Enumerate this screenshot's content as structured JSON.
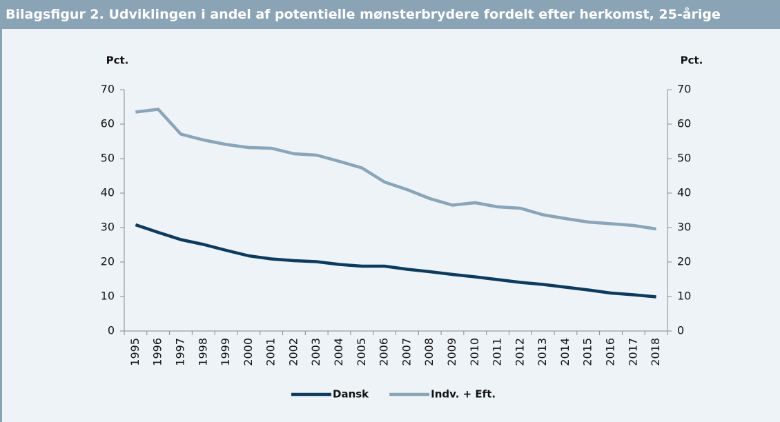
{
  "chart_data": {
    "type": "line",
    "title": "Bilagsfigur 2. Udviklingen i andel af potentielle mønsterbrydere fordelt efter herkomst, 25-årige",
    "ylabel": "Pct.",
    "y2label": "Pct.",
    "categories": [
      "1995",
      "1996",
      "1997",
      "1998",
      "1999",
      "2000",
      "2001",
      "2002",
      "2003",
      "2004",
      "2005",
      "2006",
      "2007",
      "2008",
      "2009",
      "2010",
      "2011",
      "2012",
      "2013",
      "2014",
      "2015",
      "2016",
      "2017",
      "2018"
    ],
    "series": [
      {
        "name": "Dansk",
        "color": "#0d3b5e",
        "values": [
          30.8,
          28.6,
          26.5,
          25.1,
          23.4,
          21.8,
          20.9,
          20.4,
          20.1,
          19.3,
          18.8,
          18.8,
          17.9,
          17.2,
          16.4,
          15.7,
          14.9,
          14.1,
          13.5,
          12.7,
          11.9,
          11.0,
          10.5,
          9.9
        ]
      },
      {
        "name": "Indv. + Eft.",
        "color": "#8aa5b8",
        "values": [
          63.5,
          64.3,
          57.1,
          55.4,
          54.1,
          53.2,
          53.0,
          51.4,
          51.0,
          49.2,
          47.3,
          43.2,
          41.0,
          38.4,
          36.5,
          37.2,
          36.0,
          35.6,
          33.7,
          32.6,
          31.6,
          31.1,
          30.6,
          29.6
        ]
      }
    ],
    "ylim": [
      0,
      70
    ],
    "yticks": [
      0,
      10,
      20,
      30,
      40,
      50,
      60,
      70
    ],
    "y2lim": [
      0,
      70
    ],
    "y2ticks": [
      0,
      10,
      20,
      30,
      40,
      50,
      60,
      70
    ],
    "legend": "bottom"
  }
}
